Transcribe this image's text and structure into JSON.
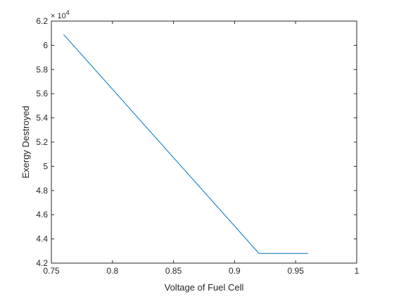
{
  "chart_data": {
    "type": "line",
    "title": "",
    "xlabel": "Voltage of Fuel Cell",
    "ylabel": "Exergy Destroyed",
    "y_exponent_label": "× 10",
    "y_exponent_power": "4",
    "xlim": [
      0.75,
      1.0
    ],
    "ylim": [
      4.2,
      6.2
    ],
    "xticks": [
      0.75,
      0.8,
      0.85,
      0.9,
      0.95,
      1.0
    ],
    "xtick_labels": [
      "0.75",
      "0.8",
      "0.85",
      "0.9",
      "0.95",
      "1"
    ],
    "yticks": [
      4.2,
      4.4,
      4.6,
      4.8,
      5.0,
      5.2,
      5.4,
      5.6,
      5.8,
      6.0,
      6.2
    ],
    "ytick_labels": [
      "4.2",
      "4.4",
      "4.6",
      "4.8",
      "5",
      "5.2",
      "5.4",
      "5.6",
      "5.8",
      "6",
      "6.2"
    ],
    "grid": false,
    "legend": "none",
    "series": [
      {
        "color": "#0072bd",
        "x": [
          0.76,
          0.92,
          0.96
        ],
        "y": [
          6.09,
          4.28,
          4.28
        ]
      }
    ]
  }
}
